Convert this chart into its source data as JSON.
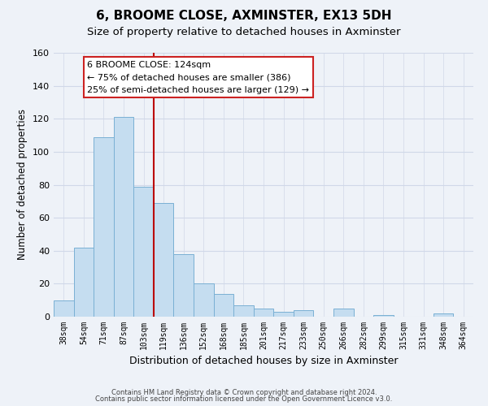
{
  "title": "6, BROOME CLOSE, AXMINSTER, EX13 5DH",
  "subtitle": "Size of property relative to detached houses in Axminster",
  "xlabel": "Distribution of detached houses by size in Axminster",
  "ylabel": "Number of detached properties",
  "bar_labels": [
    "38sqm",
    "54sqm",
    "71sqm",
    "87sqm",
    "103sqm",
    "119sqm",
    "136sqm",
    "152sqm",
    "168sqm",
    "185sqm",
    "201sqm",
    "217sqm",
    "233sqm",
    "250sqm",
    "266sqm",
    "282sqm",
    "299sqm",
    "315sqm",
    "331sqm",
    "348sqm",
    "364sqm"
  ],
  "bar_values": [
    10,
    42,
    109,
    121,
    79,
    69,
    38,
    20,
    14,
    7,
    5,
    3,
    4,
    0,
    5,
    0,
    1,
    0,
    0,
    2,
    0
  ],
  "bar_color": "#c5ddf0",
  "bar_edge_color": "#7ab0d4",
  "ylim": [
    0,
    160
  ],
  "yticks": [
    0,
    20,
    40,
    60,
    80,
    100,
    120,
    140,
    160
  ],
  "red_line_index": 5,
  "annotation_title": "6 BROOME CLOSE: 124sqm",
  "annotation_line1": "← 75% of detached houses are smaller (386)",
  "annotation_line2": "25% of semi-detached houses are larger (129) →",
  "annotation_box_color": "#ffffff",
  "annotation_box_edge": "#cc2222",
  "footer_line1": "Contains HM Land Registry data © Crown copyright and database right 2024.",
  "footer_line2": "Contains public sector information licensed under the Open Government Licence v3.0.",
  "background_color": "#eef2f8",
  "plot_background": "#eef2f8",
  "title_fontsize": 11,
  "subtitle_fontsize": 9.5,
  "grid_color": "#d0d8e8"
}
